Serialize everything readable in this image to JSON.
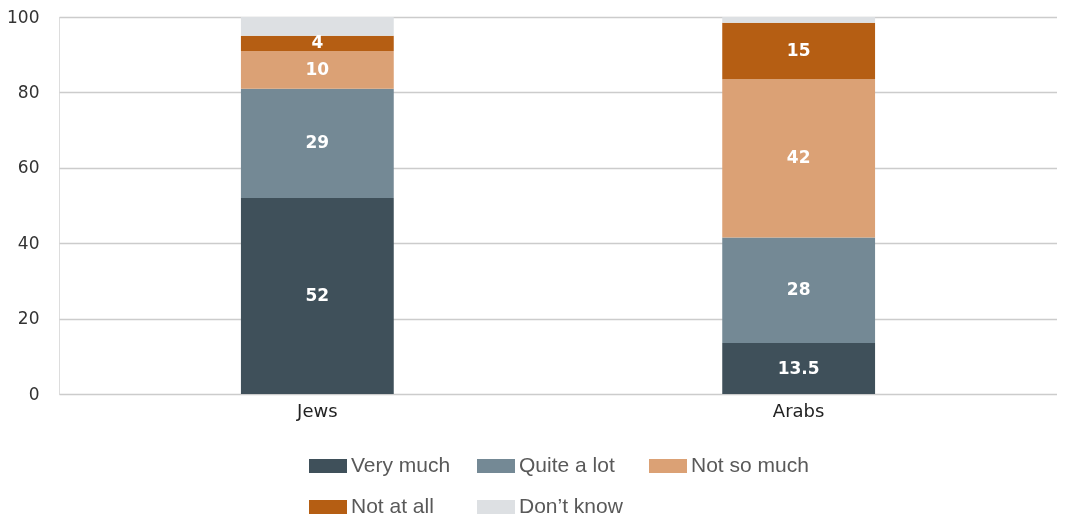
{
  "chart_data": {
    "type": "bar",
    "stacked": true,
    "categories": [
      "Jews",
      "Arabs"
    ],
    "series": [
      {
        "name": "Very much",
        "color": "#3f505a",
        "values": [
          52,
          13.5
        ],
        "value_labels": [
          "52",
          "13.5"
        ]
      },
      {
        "name": "Quite a lot",
        "color": "#748995",
        "values": [
          29,
          28
        ],
        "value_labels": [
          "29",
          "28"
        ]
      },
      {
        "name": "Not so much",
        "color": "#dba175",
        "values": [
          10,
          42
        ],
        "value_labels": [
          "10",
          "42"
        ]
      },
      {
        "name": "Not at all",
        "color": "#b55e13",
        "values": [
          4,
          15
        ],
        "value_labels": [
          "4",
          "15"
        ]
      },
      {
        "name": "Don’t know",
        "color": "#dde0e3",
        "values": [
          5,
          1.5
        ]
      }
    ],
    "ylim": [
      0,
      100
    ],
    "yticks": [
      0,
      20,
      40,
      60,
      80,
      100
    ],
    "grid": "y",
    "legend": "bottom"
  }
}
